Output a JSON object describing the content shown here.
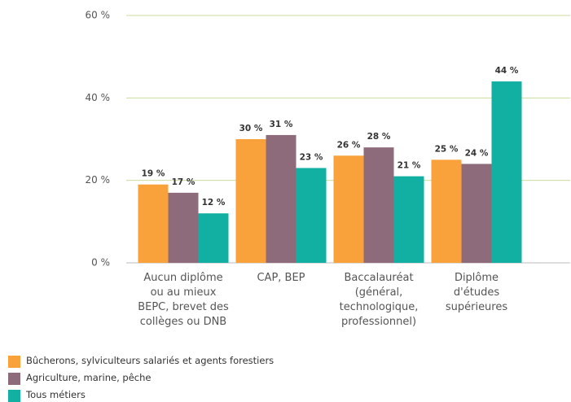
{
  "chart_data": {
    "type": "bar",
    "categories": [
      "Aucun diplôme\nou au mieux\nBEPC, brevet des\ncollèges ou DNB",
      "CAP, BEP",
      "Baccalauréat\n(général,\ntechnologique,\nprofessionnel)",
      "Diplôme\nd'études\nsupérieures"
    ],
    "series": [
      {
        "name": "Bûcherons, sylviculteurs salariés et agents forestiers",
        "color": "#f9a13a",
        "values": [
          19,
          30,
          26,
          25
        ],
        "value_labels": [
          "19 %",
          "30 %",
          "26 %",
          "25 %"
        ]
      },
      {
        "name": "Agriculture, marine, pêche",
        "color": "#8e6b7b",
        "values": [
          17,
          31,
          28,
          24
        ],
        "value_labels": [
          "17 %",
          "31 %",
          "28 %",
          "24 %"
        ]
      },
      {
        "name": "Tous métiers",
        "color": "#12b0a3",
        "values": [
          12,
          23,
          21,
          44
        ],
        "value_labels": [
          "12 %",
          "23 %",
          "21 %",
          "44 %"
        ]
      }
    ],
    "ylim": [
      0,
      60
    ],
    "yticks": [
      {
        "value": 0,
        "label": "0 %"
      },
      {
        "value": 20,
        "label": "20 %"
      },
      {
        "value": 40,
        "label": "40 %"
      },
      {
        "value": 60,
        "label": "60 %"
      }
    ],
    "grid": true
  }
}
